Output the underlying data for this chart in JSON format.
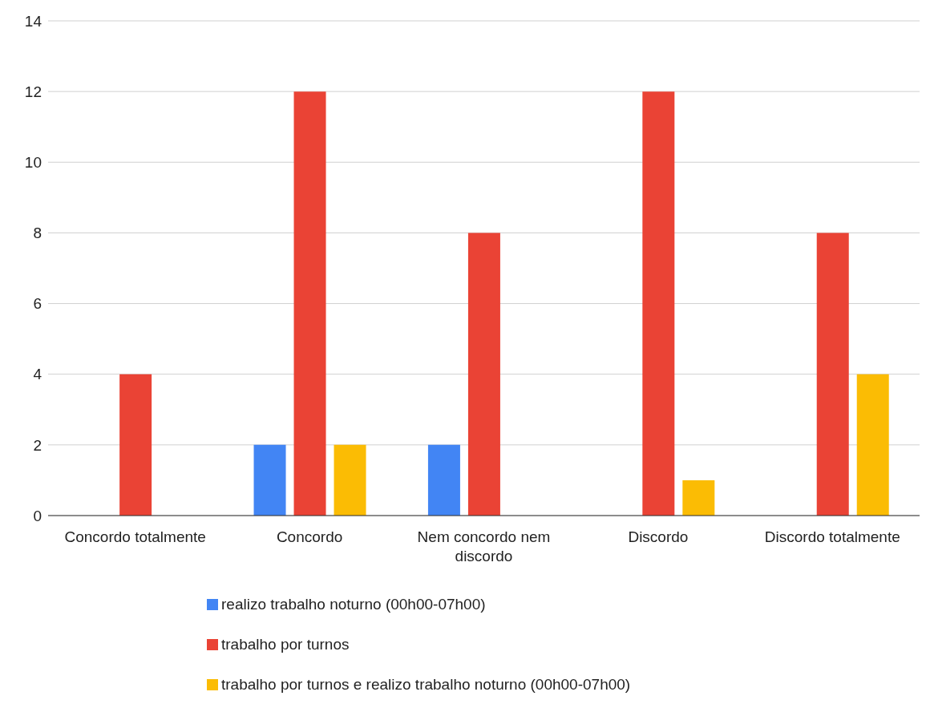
{
  "chart_data": {
    "type": "bar",
    "categories": [
      "Concordo totalmente",
      "Concordo",
      "Nem concordo nem discordo",
      "Discordo",
      "Discordo totalmente"
    ],
    "series": [
      {
        "name": "realizo trabalho noturno (00h00-07h00)",
        "color": "#4285f4",
        "values": [
          0,
          2,
          2,
          0,
          0
        ]
      },
      {
        "name": "trabalho por turnos",
        "color": "#ea4335",
        "values": [
          4,
          12,
          8,
          12,
          8
        ]
      },
      {
        "name": "trabalho por turnos e realizo trabalho noturno (00h00-07h00)",
        "color": "#fbbc04",
        "values": [
          0,
          2,
          0,
          1,
          4
        ]
      }
    ],
    "ylim": [
      0,
      14
    ],
    "yticks": [
      0,
      2,
      4,
      6,
      8,
      10,
      12,
      14
    ],
    "grid": "y",
    "legend": "bottom"
  }
}
